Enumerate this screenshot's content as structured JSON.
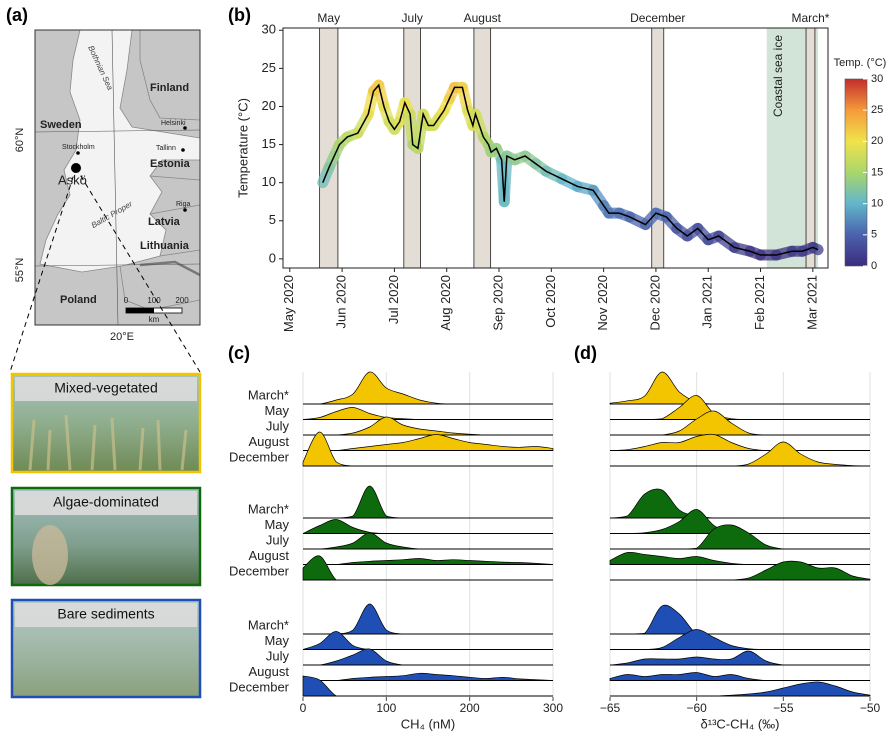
{
  "map": {
    "panel_label": "(a)",
    "countries": [
      "Finland",
      "Sweden",
      "Estonia",
      "Latvia",
      "Lithuania",
      "Poland"
    ],
    "cities": [
      "Helsinki",
      "Stockholm",
      "Tallinn",
      "Riga"
    ],
    "site": "Askö",
    "seas": [
      "Bothnian Sea",
      "Baltic Proper"
    ],
    "lat_labels": [
      "60°N",
      "55°N"
    ],
    "lon_label": "20°E",
    "scale": {
      "ticks": [
        0,
        100,
        200
      ],
      "unit": "km"
    }
  },
  "chart_data": [
    {
      "type": "line",
      "panel_label": "(b)",
      "ylabel": "Temperature (°C)",
      "xlim": [
        -0.13,
        10.29
      ],
      "ylim": [
        -1.2,
        30.3
      ],
      "yticks": [
        0,
        5,
        10,
        15,
        20,
        25,
        30
      ],
      "xticks": [
        {
          "value": 0,
          "label": "May 2020"
        },
        {
          "value": 1,
          "label": "Jun 2020"
        },
        {
          "value": 2,
          "label": "Jul 2020"
        },
        {
          "value": 3,
          "label": "Aug 2020"
        },
        {
          "value": 4,
          "label": "Sep 2020"
        },
        {
          "value": 5,
          "label": "Oct 2020"
        },
        {
          "value": 6,
          "label": "Nov 2020"
        },
        {
          "value": 7,
          "label": "Dec 2020"
        },
        {
          "value": 8,
          "label": "Jan 2021"
        },
        {
          "value": 9,
          "label": "Feb 2021"
        },
        {
          "value": 10,
          "label": "Mar 2021"
        }
      ],
      "series": [
        {
          "color": "#000000",
          "x": [
            0.63,
            0.75,
            0.85,
            0.95,
            1.1,
            1.3,
            1.5,
            1.6,
            1.7,
            1.8,
            1.9,
            2.0,
            2.1,
            2.2,
            2.3,
            2.35,
            2.45,
            2.55,
            2.65,
            2.75,
            2.85,
            2.95,
            3.05,
            3.15,
            3.3,
            3.4,
            3.5,
            3.55,
            3.7,
            3.8,
            3.85,
            3.95,
            4.05,
            4.1,
            4.15,
            4.3,
            4.5,
            4.7,
            4.9,
            5.2,
            5.5,
            5.8,
            6.0,
            6.1,
            6.3,
            6.5,
            6.8,
            7.0,
            7.2,
            7.4,
            7.6,
            7.8,
            8.0,
            8.2,
            8.5,
            8.8,
            9.0,
            9.3,
            9.6,
            9.8,
            10.0,
            10.1
          ],
          "values": [
            10,
            12,
            13.5,
            15,
            16,
            16.5,
            19,
            22,
            22.8,
            20,
            18,
            17,
            18,
            20.5,
            19,
            15,
            14.5,
            19,
            17.5,
            17.5,
            18.5,
            19.5,
            21,
            22.5,
            22.5,
            19.5,
            17.5,
            19,
            16,
            15,
            14,
            14.5,
            13,
            7.5,
            13.5,
            13,
            13.5,
            12.5,
            11.5,
            10.5,
            9.5,
            9,
            7,
            6,
            6,
            5.5,
            4.5,
            6,
            5.5,
            4,
            3,
            4,
            2.5,
            3,
            1.5,
            1,
            0.5,
            0.5,
            1,
            1,
            1.5,
            1.2
          ]
        }
      ],
      "periods": [
        {
          "label": "May",
          "x": [
            0.57,
            0.92
          ]
        },
        {
          "label": "July",
          "x": [
            2.18,
            2.5
          ]
        },
        {
          "label": "August",
          "x": [
            3.52,
            3.84
          ]
        },
        {
          "label": "December",
          "x": [
            6.92,
            7.15
          ]
        },
        {
          "label": "March*",
          "x": [
            9.87,
            10.04
          ]
        }
      ],
      "ice": {
        "label": "Coastal sea ice",
        "x": [
          9.12,
          10.1
        ]
      },
      "colorbar": {
        "label": "Temp. (°C)",
        "lim": [
          0,
          30
        ],
        "ticks": [
          0,
          5,
          10,
          15,
          20,
          25,
          30
        ],
        "colors": [
          "#3b2c7e",
          "#4b62ad",
          "#62b6cb",
          "#a9d66c",
          "#f0e34a",
          "#f59a3b",
          "#c42d2d"
        ]
      }
    },
    {
      "type": "ridgeline",
      "panel_label": "(c)",
      "xlabel": "CH₄ (nM)",
      "xlim": [
        0,
        300
      ],
      "xticks": [
        0,
        100,
        200,
        300
      ],
      "grid": true,
      "x": [
        0,
        20,
        40,
        60,
        80,
        100,
        120,
        140,
        160,
        180,
        200,
        220,
        240,
        260,
        280,
        300
      ],
      "groups": [
        {
          "name": "Mixed-vegetated",
          "color": "#f2c500",
          "series": [
            {
              "name": "March*",
              "values": [
                0,
                0,
                0.1,
                0.25,
                0.8,
                0.4,
                0.25,
                0.1,
                0.02,
                0,
                0,
                0,
                0,
                0,
                0,
                0
              ]
            },
            {
              "name": "May",
              "values": [
                0,
                0.05,
                0.2,
                0.3,
                0.15,
                0.05,
                0.02,
                0,
                0,
                0,
                0,
                0,
                0,
                0,
                0,
                0
              ]
            },
            {
              "name": "July",
              "values": [
                0,
                0,
                0,
                0.05,
                0.2,
                0.45,
                0.25,
                0.15,
                0.1,
                0.05,
                0.02,
                0,
                0,
                0,
                0,
                0
              ]
            },
            {
              "name": "August",
              "values": [
                0,
                0,
                0,
                0.05,
                0.1,
                0.15,
                0.2,
                0.3,
                0.4,
                0.3,
                0.2,
                0.15,
                0.1,
                0.08,
                0.1,
                0.05
              ]
            },
            {
              "name": "December",
              "values": [
                0.1,
                0.85,
                0.1,
                0,
                0,
                0,
                0,
                0,
                0,
                0,
                0,
                0,
                0,
                0,
                0,
                0
              ]
            }
          ]
        },
        {
          "name": "Algae-dominated",
          "color": "#0d6b0d",
          "series": [
            {
              "name": "March*",
              "values": [
                0,
                0,
                0,
                0.05,
                0.8,
                0.05,
                0,
                0,
                0,
                0,
                0,
                0,
                0,
                0,
                0,
                0
              ]
            },
            {
              "name": "May",
              "values": [
                0,
                0.2,
                0.35,
                0.15,
                0.03,
                0,
                0,
                0,
                0,
                0,
                0,
                0,
                0,
                0,
                0,
                0
              ]
            },
            {
              "name": "July",
              "values": [
                0,
                0,
                0.05,
                0.15,
                0.4,
                0.15,
                0.05,
                0,
                0,
                0,
                0,
                0,
                0,
                0,
                0,
                0
              ]
            },
            {
              "name": "August",
              "values": [
                0,
                0,
                0,
                0.05,
                0.08,
                0.1,
                0.12,
                0.15,
                0.1,
                0.12,
                0.1,
                0.08,
                0.06,
                0.05,
                0.03,
                0
              ]
            },
            {
              "name": "December",
              "values": [
                0.3,
                0.6,
                0,
                0,
                0,
                0,
                0,
                0,
                0,
                0,
                0,
                0,
                0,
                0,
                0,
                0
              ]
            }
          ]
        },
        {
          "name": "Bare sediments",
          "color": "#1f4fb4",
          "series": [
            {
              "name": "March*",
              "values": [
                0,
                0,
                0,
                0.1,
                0.75,
                0.1,
                0,
                0,
                0,
                0,
                0,
                0,
                0,
                0,
                0,
                0
              ]
            },
            {
              "name": "May",
              "values": [
                0,
                0.15,
                0.45,
                0.1,
                0,
                0,
                0,
                0,
                0,
                0,
                0,
                0,
                0,
                0,
                0,
                0
              ]
            },
            {
              "name": "July",
              "values": [
                0,
                0,
                0.1,
                0.25,
                0.4,
                0.1,
                0,
                0,
                0,
                0,
                0,
                0,
                0,
                0,
                0,
                0
              ]
            },
            {
              "name": "August",
              "values": [
                0,
                0,
                0,
                0.05,
                0.08,
                0.1,
                0.12,
                0.18,
                0.15,
                0.12,
                0.08,
                0.05,
                0.08,
                0.04,
                0.02,
                0
              ]
            },
            {
              "name": "December",
              "values": [
                0.5,
                0.4,
                0,
                0,
                0,
                0,
                0,
                0,
                0,
                0,
                0,
                0,
                0,
                0,
                0,
                0
              ]
            }
          ]
        }
      ]
    },
    {
      "type": "ridgeline",
      "panel_label": "(d)",
      "xlabel": "δ¹³C-CH₄ (‰)",
      "xlim": [
        -65,
        -50
      ],
      "xticks": [
        {
          "value": -65,
          "label": "−65"
        },
        {
          "value": -60,
          "label": "−60"
        },
        {
          "value": -55,
          "label": "−55"
        },
        {
          "value": -50,
          "label": "−50"
        }
      ],
      "grid": true,
      "x": [
        -65,
        -64,
        -63,
        -62,
        -61,
        -60,
        -59,
        -58,
        -57,
        -56,
        -55,
        -54,
        -53,
        -52,
        -51,
        -50
      ],
      "groups": [
        {
          "color": "#f2c500",
          "series": [
            {
              "values": [
                0.02,
                0.08,
                0.2,
                0.8,
                0.3,
                0.05,
                0,
                0,
                0,
                0,
                0,
                0,
                0,
                0,
                0,
                0
              ]
            },
            {
              "values": [
                0,
                0,
                0,
                0.02,
                0.3,
                0.6,
                0.15,
                0.02,
                0,
                0,
                0,
                0,
                0,
                0,
                0,
                0
              ]
            },
            {
              "values": [
                0,
                0,
                0,
                0,
                0.1,
                0.4,
                0.6,
                0.3,
                0.05,
                0,
                0,
                0,
                0,
                0,
                0,
                0
              ]
            },
            {
              "values": [
                0,
                0.02,
                0.1,
                0.2,
                0.2,
                0.35,
                0.4,
                0.2,
                0.05,
                0,
                0,
                0,
                0,
                0,
                0,
                0
              ]
            },
            {
              "values": [
                0,
                0,
                0,
                0,
                0,
                0,
                0,
                0,
                0.05,
                0.3,
                0.6,
                0.3,
                0.1,
                0.04,
                0.01,
                0
              ]
            }
          ]
        },
        {
          "color": "#0d6b0d",
          "series": [
            {
              "values": [
                0,
                0.05,
                0.6,
                0.7,
                0.2,
                0.05,
                0,
                0,
                0,
                0,
                0,
                0,
                0,
                0,
                0,
                0
              ]
            },
            {
              "values": [
                0,
                0,
                0.02,
                0.1,
                0.3,
                0.6,
                0.2,
                0,
                0,
                0,
                0,
                0,
                0,
                0,
                0,
                0
              ]
            },
            {
              "values": [
                0,
                0,
                0,
                0,
                0,
                0.02,
                0.5,
                0.6,
                0.4,
                0.1,
                0,
                0,
                0,
                0,
                0,
                0
              ]
            },
            {
              "values": [
                0.1,
                0.3,
                0.25,
                0.2,
                0.15,
                0.2,
                0.1,
                0.03,
                0,
                0,
                0,
                0,
                0,
                0,
                0,
                0
              ]
            },
            {
              "values": [
                0,
                0,
                0,
                0,
                0,
                0,
                0,
                0,
                0.05,
                0.25,
                0.45,
                0.45,
                0.3,
                0.3,
                0.1,
                0.02
              ]
            }
          ]
        },
        {
          "color": "#1f4fb4",
          "series": [
            {
              "values": [
                0,
                0,
                0.02,
                0.7,
                0.5,
                0,
                0,
                0,
                0,
                0,
                0,
                0,
                0,
                0,
                0,
                0
              ]
            },
            {
              "values": [
                0,
                0,
                0,
                0.05,
                0.3,
                0.5,
                0.3,
                0.1,
                0.02,
                0,
                0,
                0,
                0,
                0,
                0,
                0
              ]
            },
            {
              "values": [
                0,
                0.05,
                0.15,
                0.15,
                0.15,
                0.2,
                0.15,
                0.15,
                0.35,
                0.1,
                0,
                0,
                0,
                0,
                0,
                0
              ]
            },
            {
              "values": [
                0.05,
                0.15,
                0.1,
                0.15,
                0.15,
                0.2,
                0.1,
                0.15,
                0.05,
                0,
                0,
                0,
                0,
                0,
                0,
                0
              ]
            },
            {
              "values": [
                0,
                0,
                0,
                0,
                0,
                0,
                0,
                0.02,
                0.05,
                0.1,
                0.2,
                0.3,
                0.35,
                0.25,
                0.1,
                0.02
              ]
            }
          ]
        }
      ]
    }
  ]
}
